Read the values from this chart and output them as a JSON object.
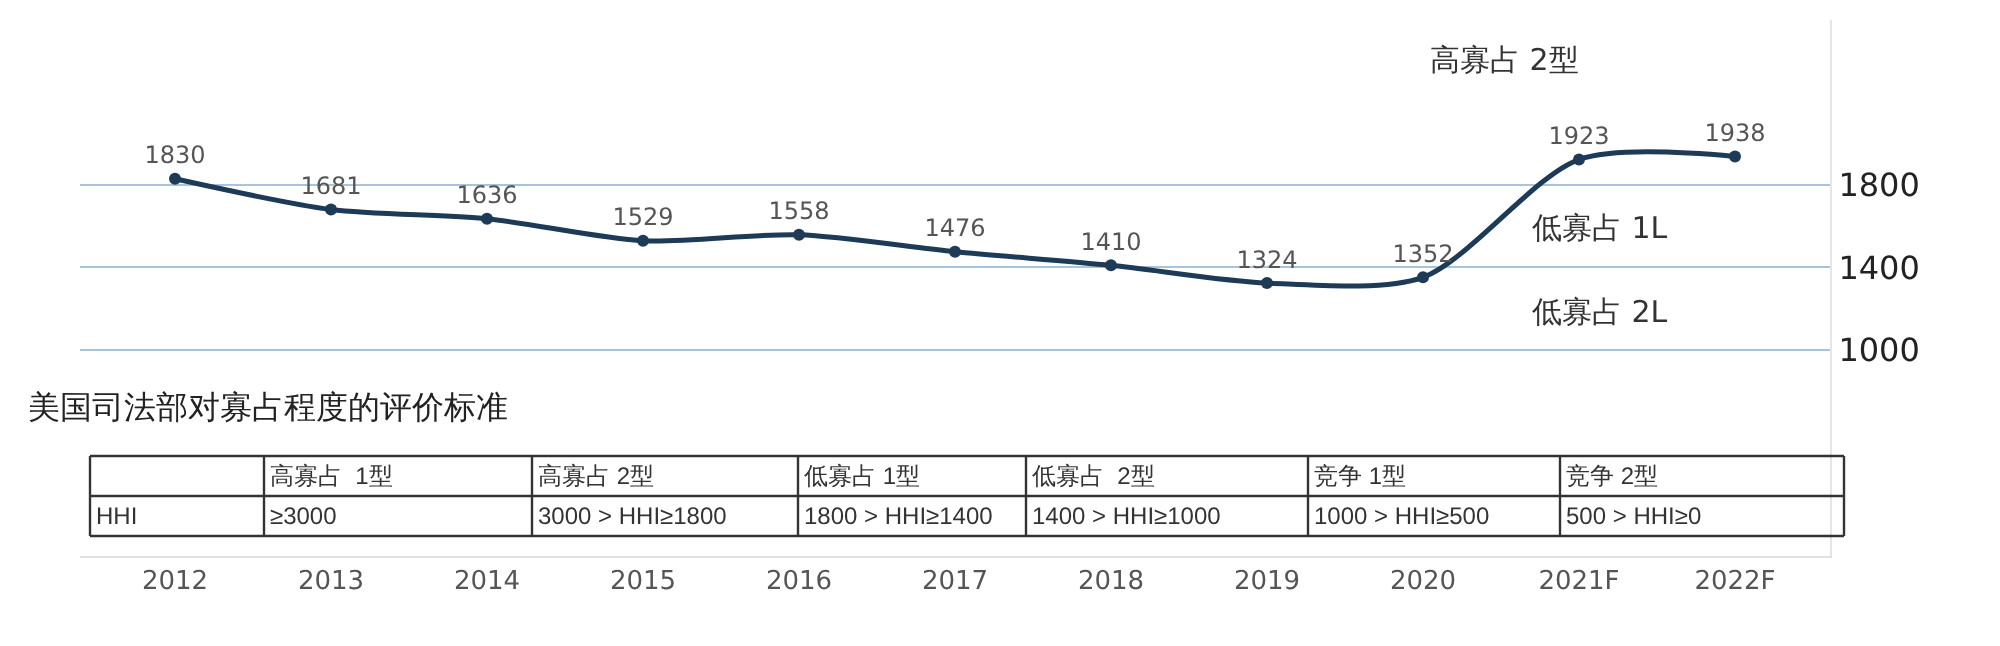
{
  "chart_data": {
    "type": "line",
    "categories": [
      "2012",
      "2013",
      "2014",
      "2015",
      "2016",
      "2017",
      "2018",
      "2019",
      "2020",
      "2021F",
      "2022F"
    ],
    "series": [
      {
        "color": "#1d3a56",
        "values": [
          1830,
          1681,
          1636,
          1529,
          1558,
          1476,
          1410,
          1324,
          1352,
          1923,
          1938
        ]
      }
    ],
    "ylim": [
      0,
      2600
    ],
    "yticks": [
      1000,
      1400,
      1800
    ],
    "grid": "y",
    "marker": "circle",
    "line_style": "solid",
    "data_labels": true,
    "annotations": [
      "高寡占 2型",
      "低寡占 1L",
      "低寡占 2L",
      "美国司法部对寡占程度的评价标准",
      "高寡占  1型",
      "高寡占 2型",
      "低寡占 1型",
      "低寡占  2型",
      "竞争 1型",
      "竞争 2型",
      "HHI",
      "≥3000",
      "3000 > HHI≥1800",
      "1800 > HHI≥1400",
      "1400 > HHI≥1000",
      "1000 > HHI≥500",
      "500 > HHI≥0"
    ]
  }
}
